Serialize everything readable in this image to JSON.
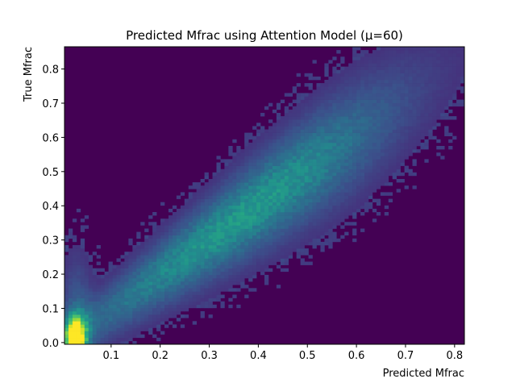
{
  "chart_data": {
    "type": "heatmap",
    "title": "Predicted Mfrac using Attention Model (μ=60)",
    "xlabel": "Predicted Mfrac",
    "ylabel": "True Mfrac",
    "xlim": [
      0.005,
      0.82
    ],
    "ylim": [
      -0.005,
      0.865
    ],
    "xticks": [
      0.1,
      0.2,
      0.3,
      0.4,
      0.5,
      0.6,
      0.7,
      0.8
    ],
    "xtick_labels": [
      "0.1",
      "0.2",
      "0.3",
      "0.4",
      "0.5",
      "0.6",
      "0.7",
      "0.8"
    ],
    "yticks": [
      0.0,
      0.1,
      0.2,
      0.3,
      0.4,
      0.5,
      0.6,
      0.7,
      0.8
    ],
    "ytick_labels": [
      "0.0",
      "0.1",
      "0.2",
      "0.3",
      "0.4",
      "0.5",
      "0.6",
      "0.7",
      "0.8"
    ],
    "colormap": "viridis",
    "background_color": "#440154",
    "grid": false,
    "legend": "none",
    "density_description": "2D histogram; peak density near predicted 0.02-0.04, true 0.0-0.05; broad band along predicted≈true from 0.05 to 0.6 with sparse outliers up to 0.82",
    "density_ridge": [
      {
        "x": 0.02,
        "y": 0.03,
        "level": 1.0
      },
      {
        "x": 0.05,
        "y": 0.06,
        "level": 0.55
      },
      {
        "x": 0.1,
        "y": 0.12,
        "level": 0.4
      },
      {
        "x": 0.2,
        "y": 0.22,
        "level": 0.38
      },
      {
        "x": 0.3,
        "y": 0.32,
        "level": 0.36
      },
      {
        "x": 0.4,
        "y": 0.42,
        "level": 0.3
      },
      {
        "x": 0.5,
        "y": 0.52,
        "level": 0.22
      },
      {
        "x": 0.6,
        "y": 0.62,
        "level": 0.12
      },
      {
        "x": 0.7,
        "y": 0.72,
        "level": 0.05
      }
    ]
  }
}
